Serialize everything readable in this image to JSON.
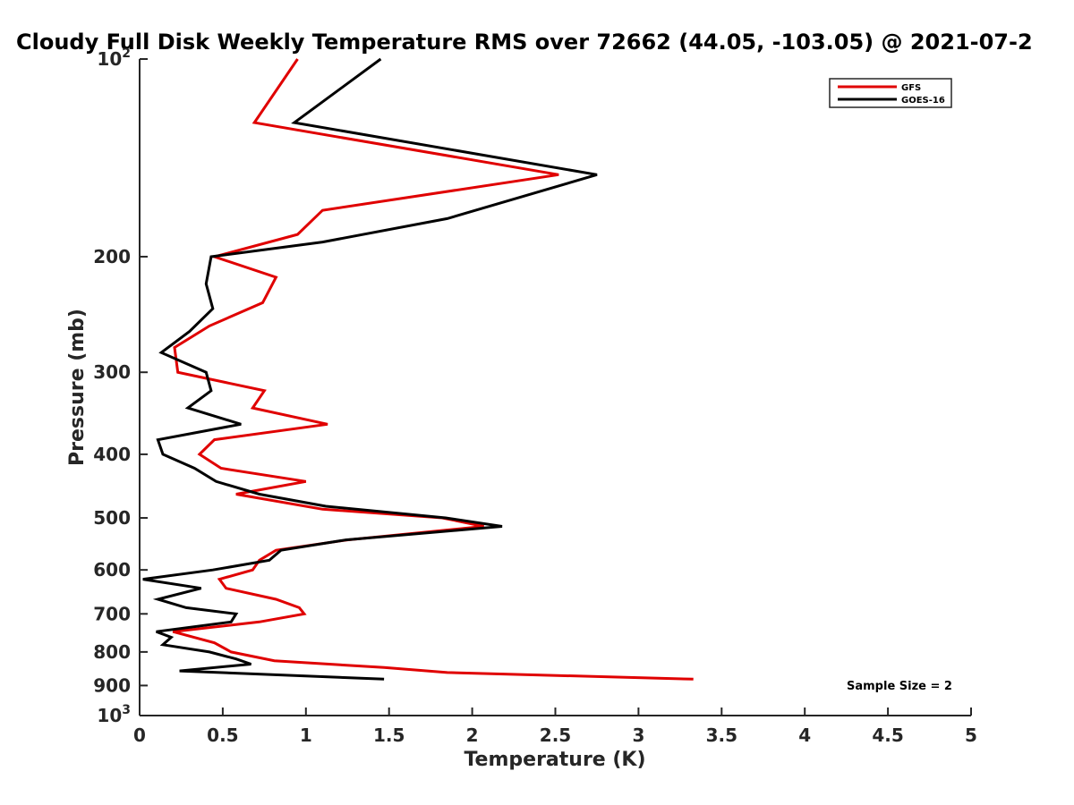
{
  "chart_data": {
    "type": "line",
    "title": "Cloudy Full Disk Weekly Temperature RMS over 72662 (44.05, -103.05) @ 2021-07-2",
    "xlabel": "Temperature (K)",
    "ylabel": "Pressure (mb)",
    "xlim": [
      0,
      5
    ],
    "ylim": [
      100,
      1000
    ],
    "y_scale": "log",
    "y_reversed": true,
    "grid": false,
    "legend_position": "top-right",
    "x_ticks": [
      {
        "value": 0,
        "label": "0"
      },
      {
        "value": 0.5,
        "label": "0.5"
      },
      {
        "value": 1,
        "label": "1"
      },
      {
        "value": 1.5,
        "label": "1.5"
      },
      {
        "value": 2,
        "label": "2"
      },
      {
        "value": 2.5,
        "label": "2.5"
      },
      {
        "value": 3,
        "label": "3"
      },
      {
        "value": 3.5,
        "label": "3.5"
      },
      {
        "value": 4,
        "label": "4"
      },
      {
        "value": 4.5,
        "label": "4.5"
      },
      {
        "value": 5,
        "label": "5"
      }
    ],
    "y_ticks": [
      {
        "value": 100,
        "label": "10",
        "sup": "2"
      },
      {
        "value": 200,
        "label": "200",
        "sup": ""
      },
      {
        "value": 300,
        "label": "300",
        "sup": ""
      },
      {
        "value": 400,
        "label": "400",
        "sup": ""
      },
      {
        "value": 500,
        "label": "500",
        "sup": ""
      },
      {
        "value": 600,
        "label": "600",
        "sup": ""
      },
      {
        "value": 700,
        "label": "700",
        "sup": ""
      },
      {
        "value": 800,
        "label": "800",
        "sup": ""
      },
      {
        "value": 900,
        "label": "900",
        "sup": ""
      },
      {
        "value": 1000,
        "label": "10",
        "sup": "3"
      }
    ],
    "annotation": "Sample Size = 2",
    "series": [
      {
        "name": "GFS",
        "color": "#e00000",
        "points": [
          [
            0.95,
            100
          ],
          [
            0.69,
            125
          ],
          [
            2.52,
            150
          ],
          [
            1.1,
            170
          ],
          [
            0.95,
            185
          ],
          [
            0.45,
            200
          ],
          [
            0.82,
            215
          ],
          [
            0.74,
            235
          ],
          [
            0.42,
            255
          ],
          [
            0.21,
            275
          ],
          [
            0.23,
            300
          ],
          [
            0.75,
            320
          ],
          [
            0.68,
            340
          ],
          [
            1.13,
            360
          ],
          [
            0.45,
            380
          ],
          [
            0.36,
            400
          ],
          [
            0.49,
            420
          ],
          [
            1.0,
            440
          ],
          [
            0.58,
            460
          ],
          [
            1.1,
            485
          ],
          [
            1.82,
            500
          ],
          [
            2.07,
            515
          ],
          [
            1.25,
            540
          ],
          [
            0.82,
            560
          ],
          [
            0.72,
            580
          ],
          [
            0.68,
            600
          ],
          [
            0.48,
            620
          ],
          [
            0.52,
            640
          ],
          [
            0.82,
            665
          ],
          [
            0.96,
            685
          ],
          [
            0.99,
            700
          ],
          [
            0.72,
            720
          ],
          [
            0.2,
            745
          ],
          [
            0.45,
            775
          ],
          [
            0.55,
            800
          ],
          [
            0.81,
            825
          ],
          [
            1.47,
            845
          ],
          [
            1.85,
            860
          ],
          [
            3.33,
            880
          ]
        ]
      },
      {
        "name": "GOES-16",
        "color": "#000000",
        "points": [
          [
            1.45,
            100
          ],
          [
            0.93,
            125
          ],
          [
            2.75,
            150
          ],
          [
            1.85,
            175
          ],
          [
            1.1,
            190
          ],
          [
            0.43,
            200
          ],
          [
            0.4,
            220
          ],
          [
            0.44,
            240
          ],
          [
            0.3,
            260
          ],
          [
            0.13,
            280
          ],
          [
            0.4,
            300
          ],
          [
            0.43,
            320
          ],
          [
            0.29,
            340
          ],
          [
            0.61,
            360
          ],
          [
            0.11,
            380
          ],
          [
            0.14,
            400
          ],
          [
            0.33,
            420
          ],
          [
            0.46,
            440
          ],
          [
            0.72,
            460
          ],
          [
            1.12,
            480
          ],
          [
            1.84,
            500
          ],
          [
            2.18,
            515
          ],
          [
            1.24,
            540
          ],
          [
            0.85,
            560
          ],
          [
            0.78,
            580
          ],
          [
            0.44,
            600
          ],
          [
            0.02,
            620
          ],
          [
            0.37,
            640
          ],
          [
            0.11,
            665
          ],
          [
            0.28,
            685
          ],
          [
            0.58,
            700
          ],
          [
            0.55,
            720
          ],
          [
            0.1,
            745
          ],
          [
            0.19,
            760
          ],
          [
            0.14,
            780
          ],
          [
            0.42,
            800
          ],
          [
            0.58,
            820
          ],
          [
            0.67,
            835
          ],
          [
            0.24,
            855
          ],
          [
            1.47,
            880
          ]
        ]
      }
    ]
  }
}
